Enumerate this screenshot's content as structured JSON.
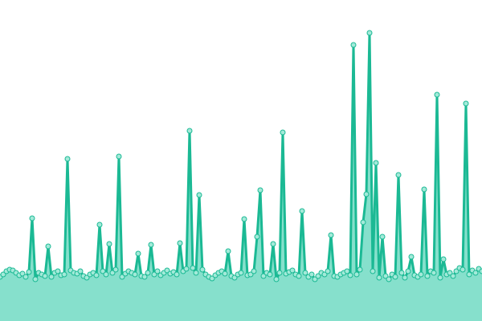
{
  "chart_data": {
    "type": "area",
    "values": [
      55,
      58,
      62,
      64,
      63,
      60,
      57,
      59,
      55,
      61,
      128,
      52,
      60,
      58,
      56,
      93,
      55,
      60,
      62,
      57,
      58,
      202,
      63,
      60,
      59,
      62,
      56,
      54,
      58,
      60,
      57,
      120,
      62,
      58,
      96,
      60,
      64,
      205,
      55,
      59,
      62,
      60,
      58,
      84,
      56,
      55,
      60,
      95,
      58,
      62,
      57,
      60,
      63,
      59,
      61,
      58,
      97,
      62,
      65,
      237,
      66,
      60,
      157,
      64,
      58,
      55,
      53,
      57,
      60,
      62,
      59,
      87,
      56,
      54,
      58,
      60,
      127,
      57,
      58,
      62,
      105,
      163,
      56,
      60,
      58,
      96,
      52,
      60,
      235,
      59,
      61,
      63,
      58,
      56,
      137,
      60,
      55,
      58,
      52,
      56,
      60,
      58,
      62,
      107,
      56,
      55,
      58,
      60,
      62,
      57,
      344,
      58,
      64,
      123,
      158,
      359,
      62,
      197,
      54,
      105,
      56,
      52,
      58,
      55,
      182,
      60,
      54,
      62,
      80,
      57,
      55,
      58,
      164,
      56,
      62,
      60,
      282,
      54,
      77,
      58,
      60,
      56,
      62,
      66,
      64,
      271,
      58,
      63,
      60,
      65,
      62
    ],
    "color": "#1bb994",
    "fill": "#86e0cc",
    "point_fill": "#a3ead9",
    "ylim": [
      0,
      400
    ]
  }
}
